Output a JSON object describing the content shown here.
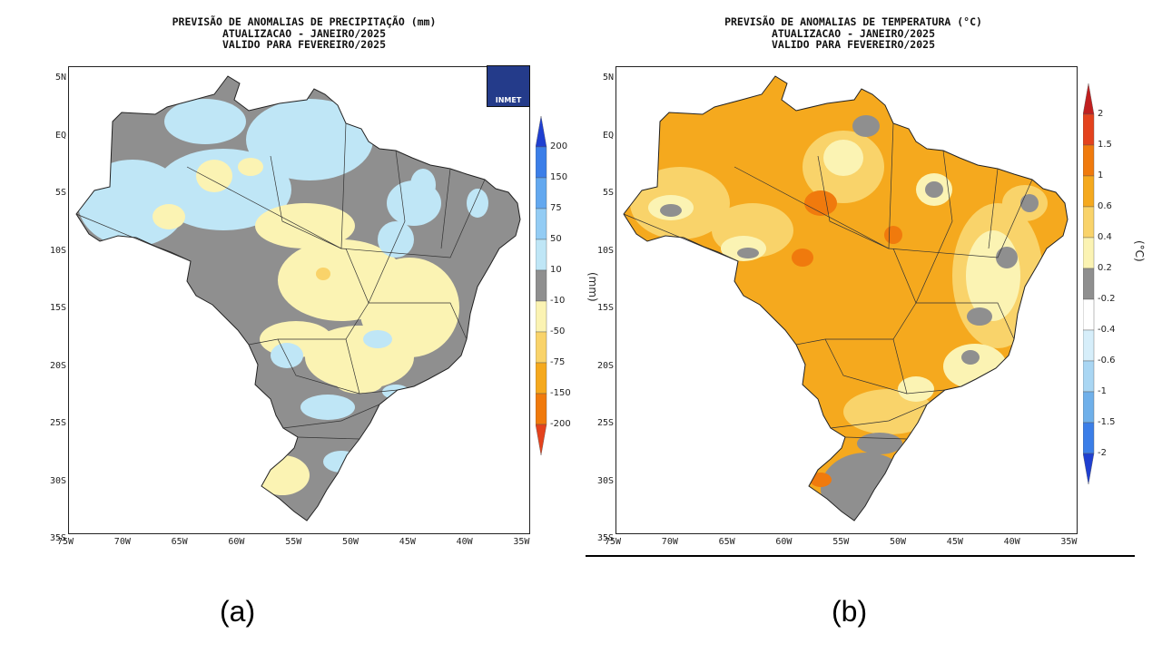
{
  "panel_a": {
    "title_line1": "PREVISÃO DE ANOMALIAS DE PRECIPITAÇÃO (mm)",
    "title_line2": "ATUALIZACAO - JANEIRO/2025",
    "title_line3": "VALIDO PARA FEVEREIRO/2025",
    "unit": "(mm)",
    "logo_text": "INMET",
    "caption": "(a)",
    "legend_levels": [
      "200",
      "150",
      "75",
      "50",
      "10",
      "-10",
      "-50",
      "-75",
      "-150",
      "-200"
    ],
    "legend_colors": [
      "#1f3fd0",
      "#3b7ee8",
      "#63a8ef",
      "#93ccf4",
      "#bfe6f6",
      "#8f8f8f",
      "#fbf3b3",
      "#f9d36a",
      "#f5a91e",
      "#f07a0d",
      "#e4421d"
    ]
  },
  "panel_b": {
    "title_line1": "PREVISÃO DE ANOMALIAS DE TEMPERATURA (°C)",
    "title_line2": "ATUALIZACAO - JANEIRO/2025",
    "title_line3": "VALIDO PARA FEVEREIRO/2025",
    "unit": "(°C)",
    "caption": "(b)",
    "legend_levels": [
      "2",
      "1.5",
      "1",
      "0.6",
      "0.4",
      "0.2",
      "-0.2",
      "-0.4",
      "-0.6",
      "-1",
      "-1.5",
      "-2"
    ],
    "legend_colors": [
      "#c01f1f",
      "#e4421d",
      "#f07a0d",
      "#f5a91e",
      "#f9d36a",
      "#fbf3b3",
      "#8f8f8f",
      "#ffffff",
      "#d6eefa",
      "#a9d6f3",
      "#6fb0ea",
      "#3b7ee8",
      "#1f3fd0"
    ]
  },
  "axes": {
    "lat_labels": [
      "5N",
      "EQ",
      "5S",
      "10S",
      "15S",
      "20S",
      "25S",
      "30S",
      "35S"
    ],
    "lon_labels": [
      "75W",
      "70W",
      "65W",
      "60W",
      "55W",
      "50W",
      "45W",
      "40W",
      "35W"
    ]
  }
}
